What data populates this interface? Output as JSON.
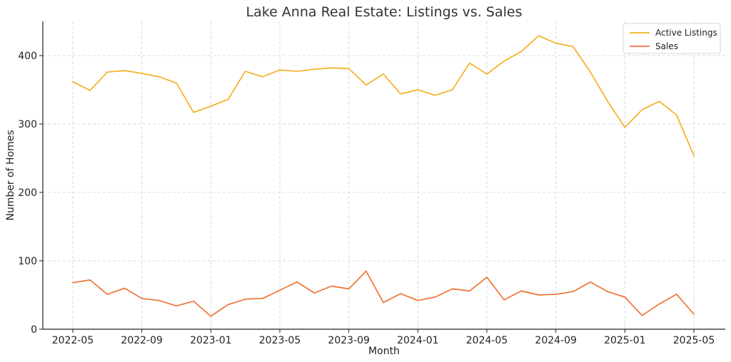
{
  "chart_data": {
    "type": "line",
    "title": "Lake Anna Real Estate: Listings vs. Sales",
    "xlabel": "Month",
    "ylabel": "Number of Homes",
    "x": [
      "2022-05",
      "2022-06",
      "2022-07",
      "2022-08",
      "2022-09",
      "2022-10",
      "2022-11",
      "2022-12",
      "2023-01",
      "2023-02",
      "2023-03",
      "2023-04",
      "2023-05",
      "2023-06",
      "2023-07",
      "2023-08",
      "2023-09",
      "2023-10",
      "2023-11",
      "2023-12",
      "2024-01",
      "2024-02",
      "2024-03",
      "2024-04",
      "2024-05",
      "2024-06",
      "2024-07",
      "2024-08",
      "2024-09",
      "2024-10",
      "2024-11",
      "2024-12",
      "2025-01",
      "2025-02",
      "2025-03",
      "2025-04",
      "2025-05"
    ],
    "x_ticks": [
      "2022-05",
      "2022-09",
      "2023-01",
      "2023-05",
      "2023-09",
      "2024-01",
      "2024-05",
      "2024-09",
      "2025-01",
      "2025-05"
    ],
    "ylim": [
      0,
      450
    ],
    "y_ticks": [
      0,
      100,
      200,
      300,
      400
    ],
    "grid": true,
    "legend_position": "top-right",
    "series": [
      {
        "name": "Active Listings",
        "color": "#f5b021",
        "values": [
          362,
          349,
          376,
          378,
          374,
          369,
          360,
          317,
          326,
          336,
          377,
          369,
          379,
          377,
          380,
          382,
          381,
          357,
          373,
          344,
          350,
          342,
          350,
          389,
          373,
          392,
          406,
          429,
          418,
          413,
          376,
          333,
          295,
          321,
          333,
          313,
          254
        ]
      },
      {
        "name": "Sales",
        "color": "#ee7434",
        "values": [
          68,
          72,
          51,
          60,
          45,
          42,
          34,
          41,
          19,
          36,
          44,
          45,
          57,
          69,
          53,
          63,
          59,
          85,
          39,
          52,
          42,
          47,
          59,
          56,
          76,
          43,
          56,
          50,
          51,
          55,
          69,
          55,
          47,
          20,
          37,
          51,
          22
        ]
      }
    ]
  }
}
